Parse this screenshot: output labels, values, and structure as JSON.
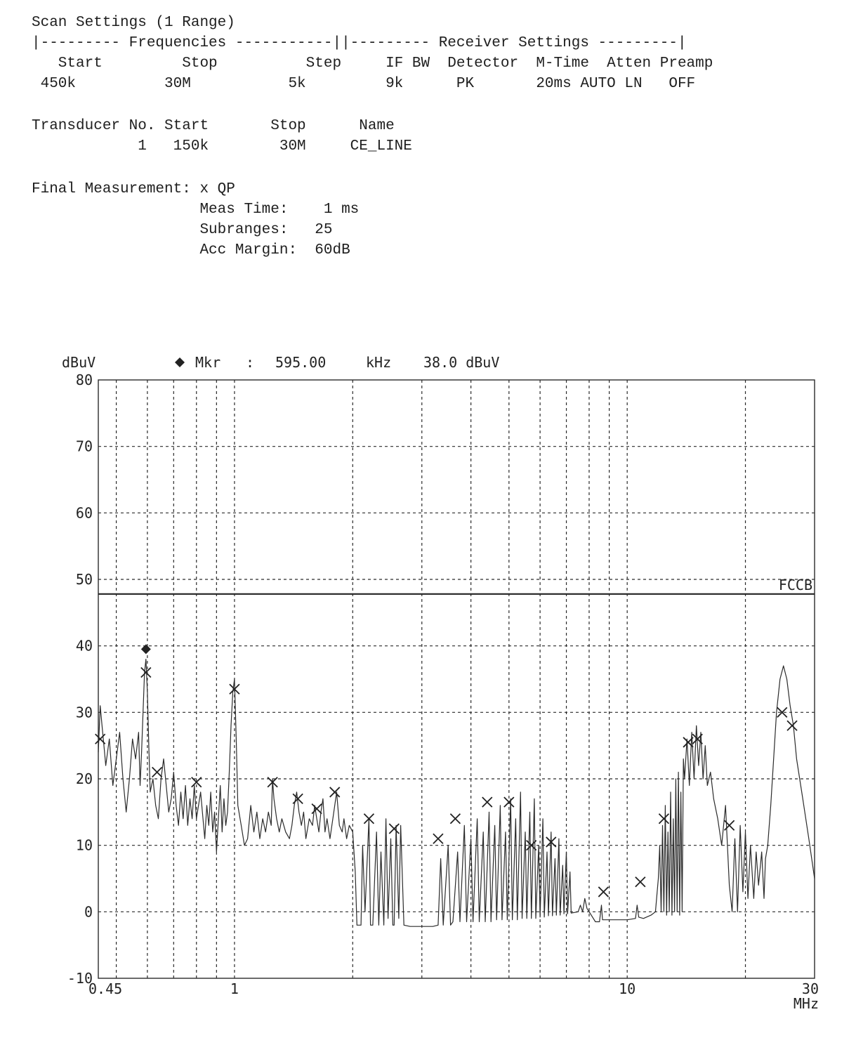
{
  "header": {
    "line1": "Scan Settings (1 Range)",
    "line2": "|--------- Frequencies -----------||--------- Receiver Settings ---------|",
    "line3": "   Start         Stop          Step     IF BW  Detector  M-Time  Atten Preamp",
    "line4": " 450k          30M           5k         9k      PK       20ms AUTO LN   OFF"
  },
  "transducer": {
    "line1": "Transducer No. Start       Stop      Name",
    "line2": "            1   150k        30M     CE_LINE"
  },
  "final": {
    "line1": "Final Measurement: x QP",
    "line2": "                   Meas Time:    1 ms",
    "line3": "                   Subranges:   25",
    "line4": "                   Acc Margin:  60dB"
  },
  "chart_data": {
    "type": "line",
    "xscale": "log",
    "xlim": [
      0.45,
      30
    ],
    "ylim": [
      -10,
      80
    ],
    "yunit": "dBuV",
    "xunit": "MHz",
    "yticks": [
      "80",
      "70",
      "60",
      "50",
      "40",
      "30",
      "20",
      "10",
      "0",
      "-10"
    ],
    "yticks_values": [
      80,
      70,
      60,
      50,
      40,
      30,
      20,
      10,
      0,
      -10
    ],
    "xticks": [
      "0.45",
      "1",
      "10",
      "30"
    ],
    "xticks_values": [
      0.45,
      1,
      10,
      30
    ],
    "xgrid": [
      0.5,
      0.6,
      0.7,
      0.8,
      0.9,
      1,
      2,
      3,
      4,
      5,
      6,
      7,
      8,
      9,
      10,
      20,
      30
    ],
    "ygrid": [
      70,
      60,
      50,
      40,
      30,
      20,
      10,
      0
    ],
    "marker_label": "Mkr",
    "marker_sep": ":",
    "marker_freq": "595.00",
    "marker_freq_unit": "kHz",
    "marker_level": "38.0 dBuV",
    "marker": {
      "x": 0.595,
      "y": 39.5
    },
    "limit_line": {
      "label": "FCCB",
      "value": 47.8
    },
    "trace": [
      [
        0.45,
        24
      ],
      [
        0.455,
        31
      ],
      [
        0.46,
        28
      ],
      [
        0.465,
        25
      ],
      [
        0.47,
        22
      ],
      [
        0.48,
        26
      ],
      [
        0.49,
        19
      ],
      [
        0.5,
        23
      ],
      [
        0.51,
        27
      ],
      [
        0.52,
        20
      ],
      [
        0.53,
        15
      ],
      [
        0.54,
        20
      ],
      [
        0.55,
        26
      ],
      [
        0.56,
        23
      ],
      [
        0.57,
        27
      ],
      [
        0.575,
        19
      ],
      [
        0.58,
        24
      ],
      [
        0.585,
        30
      ],
      [
        0.59,
        36
      ],
      [
        0.595,
        38
      ],
      [
        0.6,
        33
      ],
      [
        0.605,
        25
      ],
      [
        0.61,
        18
      ],
      [
        0.62,
        20
      ],
      [
        0.63,
        16
      ],
      [
        0.64,
        14
      ],
      [
        0.65,
        20
      ],
      [
        0.66,
        23
      ],
      [
        0.67,
        19
      ],
      [
        0.68,
        15
      ],
      [
        0.69,
        17
      ],
      [
        0.7,
        21
      ],
      [
        0.71,
        16
      ],
      [
        0.72,
        13
      ],
      [
        0.73,
        18
      ],
      [
        0.74,
        14
      ],
      [
        0.75,
        19
      ],
      [
        0.76,
        13
      ],
      [
        0.77,
        17
      ],
      [
        0.78,
        14
      ],
      [
        0.79,
        19
      ],
      [
        0.8,
        14
      ],
      [
        0.82,
        18
      ],
      [
        0.84,
        11
      ],
      [
        0.85,
        16
      ],
      [
        0.86,
        13
      ],
      [
        0.87,
        18
      ],
      [
        0.88,
        12
      ],
      [
        0.89,
        15
      ],
      [
        0.9,
        9
      ],
      [
        0.91,
        14
      ],
      [
        0.92,
        19
      ],
      [
        0.93,
        12
      ],
      [
        0.94,
        17
      ],
      [
        0.95,
        13
      ],
      [
        0.96,
        15
      ],
      [
        0.97,
        21
      ],
      [
        0.98,
        28
      ],
      [
        0.99,
        33
      ],
      [
        1.0,
        35
      ],
      [
        1.01,
        26
      ],
      [
        1.02,
        16
      ],
      [
        1.04,
        13
      ],
      [
        1.06,
        10
      ],
      [
        1.08,
        11
      ],
      [
        1.1,
        16
      ],
      [
        1.12,
        12
      ],
      [
        1.14,
        15
      ],
      [
        1.16,
        11
      ],
      [
        1.18,
        14
      ],
      [
        1.2,
        12
      ],
      [
        1.22,
        15
      ],
      [
        1.24,
        13
      ],
      [
        1.25,
        20
      ],
      [
        1.26,
        17
      ],
      [
        1.28,
        14
      ],
      [
        1.3,
        12
      ],
      [
        1.32,
        14
      ],
      [
        1.35,
        12
      ],
      [
        1.38,
        11
      ],
      [
        1.4,
        13
      ],
      [
        1.42,
        16
      ],
      [
        1.44,
        18
      ],
      [
        1.46,
        15
      ],
      [
        1.48,
        13
      ],
      [
        1.5,
        15
      ],
      [
        1.52,
        11
      ],
      [
        1.55,
        14
      ],
      [
        1.58,
        13
      ],
      [
        1.6,
        16
      ],
      [
        1.62,
        14
      ],
      [
        1.64,
        12
      ],
      [
        1.66,
        15
      ],
      [
        1.68,
        17
      ],
      [
        1.7,
        12
      ],
      [
        1.72,
        14
      ],
      [
        1.75,
        11
      ],
      [
        1.78,
        14
      ],
      [
        1.8,
        16
      ],
      [
        1.82,
        18
      ],
      [
        1.85,
        13
      ],
      [
        1.88,
        12
      ],
      [
        1.9,
        14
      ],
      [
        1.93,
        11
      ],
      [
        1.96,
        13
      ],
      [
        2.0,
        12
      ],
      [
        2.03,
        6
      ],
      [
        2.05,
        -2
      ],
      [
        2.1,
        -2
      ],
      [
        2.12,
        10
      ],
      [
        2.15,
        0
      ],
      [
        2.2,
        14
      ],
      [
        2.22,
        -2
      ],
      [
        2.25,
        -2
      ],
      [
        2.3,
        12
      ],
      [
        2.33,
        -2
      ],
      [
        2.36,
        9
      ],
      [
        2.4,
        -2
      ],
      [
        2.43,
        14
      ],
      [
        2.46,
        -1
      ],
      [
        2.5,
        11
      ],
      [
        2.53,
        -2
      ],
      [
        2.55,
        -2
      ],
      [
        2.58,
        13
      ],
      [
        2.62,
        -1
      ],
      [
        2.65,
        13
      ],
      [
        2.7,
        -2
      ],
      [
        2.8,
        -2.2
      ],
      [
        3.0,
        -2.2
      ],
      [
        3.2,
        -2.2
      ],
      [
        3.3,
        -2
      ],
      [
        3.35,
        8
      ],
      [
        3.4,
        -2
      ],
      [
        3.5,
        10
      ],
      [
        3.55,
        -2
      ],
      [
        3.6,
        -1.5
      ],
      [
        3.7,
        9
      ],
      [
        3.75,
        -1.5
      ],
      [
        3.85,
        13
      ],
      [
        3.9,
        -1.5
      ],
      [
        4.0,
        11
      ],
      [
        4.05,
        -1.5
      ],
      [
        4.15,
        14
      ],
      [
        4.2,
        -1.5
      ],
      [
        4.3,
        12
      ],
      [
        4.35,
        -1.5
      ],
      [
        4.45,
        15
      ],
      [
        4.5,
        -1.5
      ],
      [
        4.6,
        13
      ],
      [
        4.65,
        -1.2
      ],
      [
        4.75,
        16
      ],
      [
        4.8,
        -1.2
      ],
      [
        4.9,
        12
      ],
      [
        4.95,
        -1.2
      ],
      [
        5.05,
        17
      ],
      [
        5.1,
        -1.2
      ],
      [
        5.2,
        14
      ],
      [
        5.25,
        -1.2
      ],
      [
        5.35,
        18
      ],
      [
        5.4,
        -1
      ],
      [
        5.5,
        12
      ],
      [
        5.55,
        -1
      ],
      [
        5.65,
        15
      ],
      [
        5.7,
        -1
      ],
      [
        5.8,
        17
      ],
      [
        5.85,
        -1
      ],
      [
        5.95,
        10
      ],
      [
        6.0,
        -0.8
      ],
      [
        6.1,
        14
      ],
      [
        6.15,
        -0.8
      ],
      [
        6.25,
        9
      ],
      [
        6.3,
        -0.6
      ],
      [
        6.4,
        12
      ],
      [
        6.45,
        -0.6
      ],
      [
        6.55,
        8
      ],
      [
        6.6,
        -0.5
      ],
      [
        6.7,
        11
      ],
      [
        6.75,
        -0.5
      ],
      [
        6.85,
        7
      ],
      [
        6.9,
        -0.3
      ],
      [
        7.0,
        9
      ],
      [
        7.05,
        -0.3
      ],
      [
        7.15,
        6
      ],
      [
        7.2,
        -0.2
      ],
      [
        7.5,
        0
      ],
      [
        7.6,
        1
      ],
      [
        7.7,
        0
      ],
      [
        7.8,
        2
      ],
      [
        7.9,
        0.5
      ],
      [
        8.0,
        0
      ],
      [
        8.3,
        -1.5
      ],
      [
        8.5,
        -1.5
      ],
      [
        8.6,
        1
      ],
      [
        8.65,
        -1.2
      ],
      [
        9.0,
        -1.2
      ],
      [
        9.5,
        -1.2
      ],
      [
        10.0,
        -1.2
      ],
      [
        10.5,
        -1
      ],
      [
        10.6,
        1
      ],
      [
        10.7,
        -0.8
      ],
      [
        11.0,
        -1
      ],
      [
        11.5,
        -0.5
      ],
      [
        11.8,
        0
      ],
      [
        12.0,
        5
      ],
      [
        12.1,
        10
      ],
      [
        12.2,
        0
      ],
      [
        12.3,
        13
      ],
      [
        12.4,
        0
      ],
      [
        12.5,
        16
      ],
      [
        12.6,
        -0.5
      ],
      [
        12.7,
        12
      ],
      [
        12.8,
        0
      ],
      [
        12.9,
        18
      ],
      [
        13.0,
        -0.5
      ],
      [
        13.1,
        14
      ],
      [
        13.2,
        0
      ],
      [
        13.3,
        20
      ],
      [
        13.4,
        0
      ],
      [
        13.5,
        21
      ],
      [
        13.6,
        -0.5
      ],
      [
        13.7,
        18
      ],
      [
        13.8,
        0
      ],
      [
        13.9,
        23
      ],
      [
        14.0,
        20
      ],
      [
        14.2,
        26
      ],
      [
        14.4,
        19
      ],
      [
        14.6,
        27
      ],
      [
        14.8,
        20
      ],
      [
        15.0,
        28
      ],
      [
        15.2,
        22
      ],
      [
        15.4,
        27
      ],
      [
        15.6,
        20
      ],
      [
        15.8,
        25
      ],
      [
        16.0,
        19
      ],
      [
        16.3,
        21
      ],
      [
        16.6,
        17
      ],
      [
        17.0,
        14
      ],
      [
        17.4,
        10
      ],
      [
        17.8,
        16
      ],
      [
        18.2,
        4
      ],
      [
        18.5,
        0
      ],
      [
        18.8,
        11
      ],
      [
        19.1,
        0
      ],
      [
        19.4,
        13
      ],
      [
        19.7,
        3
      ],
      [
        20.0,
        12
      ],
      [
        20.3,
        2
      ],
      [
        20.6,
        10
      ],
      [
        21.0,
        2
      ],
      [
        21.3,
        9
      ],
      [
        21.6,
        4
      ],
      [
        22.0,
        9
      ],
      [
        22.3,
        2
      ],
      [
        22.5,
        8
      ],
      [
        22.8,
        10
      ],
      [
        23.2,
        16
      ],
      [
        23.6,
        23
      ],
      [
        24.0,
        30
      ],
      [
        24.5,
        35
      ],
      [
        25.0,
        37
      ],
      [
        25.5,
        35
      ],
      [
        26.0,
        31
      ],
      [
        26.5,
        28
      ],
      [
        27.0,
        23
      ],
      [
        28.0,
        17
      ],
      [
        29.0,
        11
      ],
      [
        30.0,
        5
      ]
    ],
    "qp_points": [
      [
        0.455,
        26
      ],
      [
        0.595,
        36
      ],
      [
        0.635,
        21
      ],
      [
        0.8,
        19.5
      ],
      [
        1.0,
        33.5
      ],
      [
        1.25,
        19.5
      ],
      [
        1.45,
        17
      ],
      [
        1.62,
        15.5
      ],
      [
        1.8,
        18
      ],
      [
        2.2,
        14
      ],
      [
        2.55,
        12.5
      ],
      [
        3.3,
        11
      ],
      [
        3.65,
        14
      ],
      [
        4.4,
        16.5
      ],
      [
        5.0,
        16.5
      ],
      [
        5.7,
        10
      ],
      [
        6.4,
        10.5
      ],
      [
        8.7,
        3
      ],
      [
        10.8,
        4.5
      ],
      [
        12.4,
        14
      ],
      [
        14.3,
        25.5
      ],
      [
        15.1,
        26
      ],
      [
        18.2,
        13
      ],
      [
        24.8,
        30
      ],
      [
        26.3,
        28
      ]
    ]
  }
}
